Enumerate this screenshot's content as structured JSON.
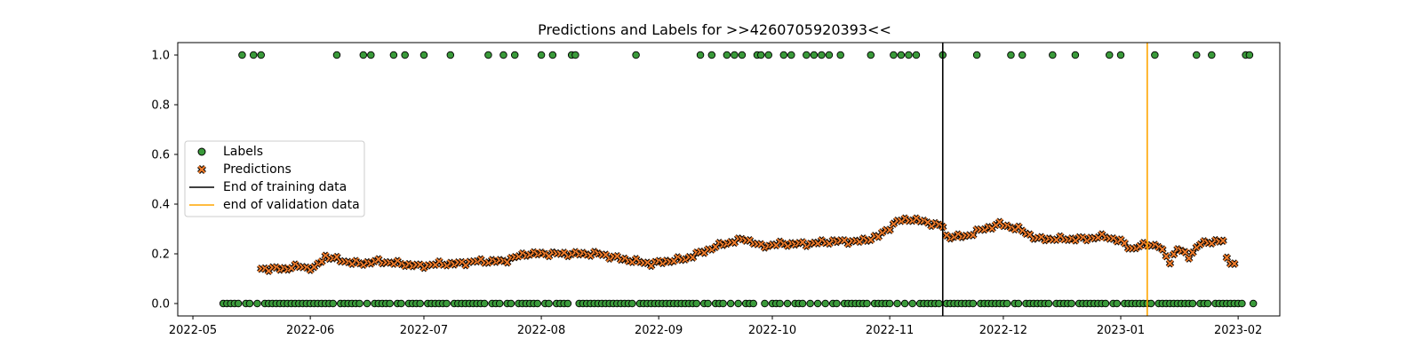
{
  "chart_data": {
    "type": "scatter",
    "title": "Predictions and Labels for >>4260705920393<<",
    "xlabel": "",
    "ylabel": "",
    "xlim": [
      "2022-04-27",
      "2023-02-12"
    ],
    "ylim": [
      -0.05,
      1.05
    ],
    "x_ticks": [
      "2022-05",
      "2022-06",
      "2022-07",
      "2022-08",
      "2022-09",
      "2022-10",
      "2022-11",
      "2022-12",
      "2023-01",
      "2023-02"
    ],
    "y_ticks": [
      "0.0",
      "0.2",
      "0.4",
      "0.6",
      "0.8",
      "1.0"
    ],
    "grid": false,
    "legend_position": "center-left",
    "series": [
      {
        "name": "Labels",
        "marker": "circle",
        "color": "#3a9a3a",
        "x_range": [
          "2022-05-09",
          "2023-02-05"
        ],
        "default_value": 0.0,
        "ones_at": [
          "2022-05-14",
          "2022-05-17",
          "2022-05-19",
          "2022-06-08",
          "2022-06-15",
          "2022-06-17",
          "2022-06-23",
          "2022-06-26",
          "2022-07-01",
          "2022-07-08",
          "2022-07-18",
          "2022-07-22",
          "2022-07-25",
          "2022-08-01",
          "2022-08-04",
          "2022-08-09",
          "2022-08-10",
          "2022-08-26",
          "2022-09-12",
          "2022-09-15",
          "2022-09-19",
          "2022-09-21",
          "2022-09-23",
          "2022-09-27",
          "2022-09-28",
          "2022-09-30",
          "2022-10-04",
          "2022-10-06",
          "2022-10-10",
          "2022-10-12",
          "2022-10-14",
          "2022-10-16",
          "2022-10-19",
          "2022-10-27",
          "2022-11-02",
          "2022-11-04",
          "2022-11-06",
          "2022-11-08",
          "2022-11-15",
          "2022-11-24",
          "2022-12-03",
          "2022-12-06",
          "2022-12-14",
          "2022-12-20",
          "2022-12-29",
          "2023-01-01",
          "2023-01-10",
          "2023-01-21",
          "2023-01-25",
          "2023-02-03",
          "2023-02-04"
        ]
      },
      {
        "name": "Predictions",
        "marker": "x",
        "color": "#f07c2b",
        "x_range": [
          "2022-05-19",
          "2023-01-31"
        ],
        "keypoints": [
          [
            "2022-05-19",
            0.14
          ],
          [
            "2022-05-25",
            0.14
          ],
          [
            "2022-05-29",
            0.15
          ],
          [
            "2022-06-02",
            0.14
          ],
          [
            "2022-06-05",
            0.19
          ],
          [
            "2022-06-10",
            0.17
          ],
          [
            "2022-06-14",
            0.16
          ],
          [
            "2022-06-19",
            0.17
          ],
          [
            "2022-06-25",
            0.16
          ],
          [
            "2022-06-30",
            0.15
          ],
          [
            "2022-07-05",
            0.16
          ],
          [
            "2022-07-10",
            0.16
          ],
          [
            "2022-07-15",
            0.17
          ],
          [
            "2022-07-22",
            0.17
          ],
          [
            "2022-07-28",
            0.2
          ],
          [
            "2022-08-02",
            0.2
          ],
          [
            "2022-08-10",
            0.2
          ],
          [
            "2022-08-16",
            0.2
          ],
          [
            "2022-08-22",
            0.18
          ],
          [
            "2022-08-30",
            0.16
          ],
          [
            "2022-09-03",
            0.17
          ],
          [
            "2022-09-08",
            0.18
          ],
          [
            "2022-09-13",
            0.21
          ],
          [
            "2022-09-18",
            0.24
          ],
          [
            "2022-09-24",
            0.26
          ],
          [
            "2022-09-28",
            0.23
          ],
          [
            "2022-10-03",
            0.24
          ],
          [
            "2022-10-10",
            0.24
          ],
          [
            "2022-10-17",
            0.25
          ],
          [
            "2022-10-24",
            0.25
          ],
          [
            "2022-10-29",
            0.27
          ],
          [
            "2022-11-03",
            0.33
          ],
          [
            "2022-11-06",
            0.34
          ],
          [
            "2022-11-10",
            0.33
          ],
          [
            "2022-11-15",
            0.31
          ],
          [
            "2022-11-16",
            0.27
          ],
          [
            "2022-11-21",
            0.27
          ],
          [
            "2022-11-24",
            0.29
          ],
          [
            "2022-11-30",
            0.32
          ],
          [
            "2022-12-05",
            0.3
          ],
          [
            "2022-12-10",
            0.26
          ],
          [
            "2022-12-15",
            0.26
          ],
          [
            "2022-12-22",
            0.26
          ],
          [
            "2022-12-28",
            0.27
          ],
          [
            "2023-01-01",
            0.25
          ],
          [
            "2023-01-04",
            0.22
          ],
          [
            "2023-01-08",
            0.24
          ],
          [
            "2023-01-11",
            0.23
          ],
          [
            "2023-01-14",
            0.17
          ],
          [
            "2023-01-16",
            0.22
          ],
          [
            "2023-01-19",
            0.19
          ],
          [
            "2023-01-22",
            0.24
          ],
          [
            "2023-01-25",
            0.25
          ],
          [
            "2023-01-28",
            0.25
          ],
          [
            "2023-01-29",
            0.18
          ],
          [
            "2023-01-31",
            0.16
          ]
        ]
      }
    ],
    "vlines": [
      {
        "name": "End of training data",
        "x": "2022-11-15",
        "color": "#000000"
      },
      {
        "name": "end of validation data",
        "x": "2023-01-08",
        "color": "#ffa500"
      }
    ]
  }
}
